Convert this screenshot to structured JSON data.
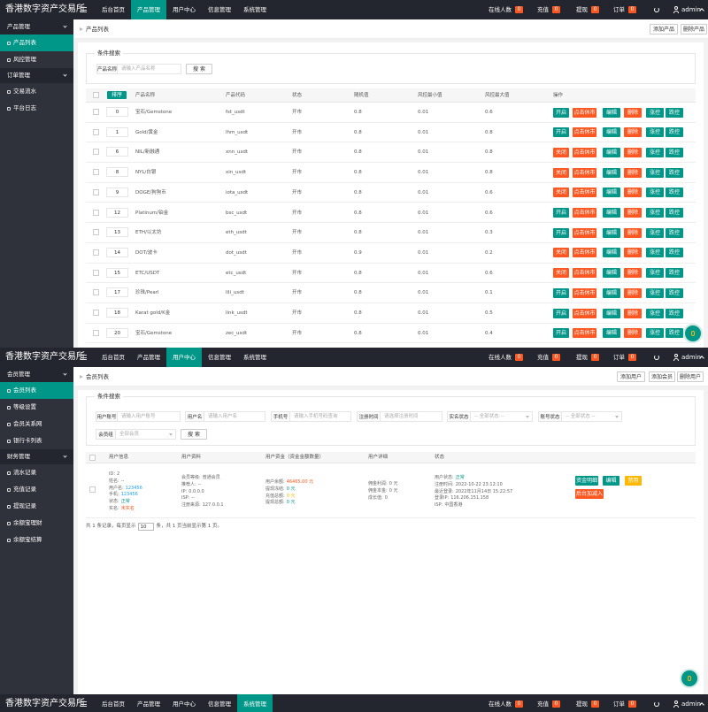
{
  "screens": [
    {
      "header": {
        "logo": "香港数字资产交易所",
        "nav": [
          {
            "label": "后台首页"
          },
          {
            "label": "产品管理",
            "active": true
          },
          {
            "label": "用户中心"
          },
          {
            "label": "信息管理"
          },
          {
            "label": "系统管理"
          }
        ],
        "stats": [
          {
            "label": "在线人数",
            "count": 0
          },
          {
            "label": "充值",
            "count": 0
          },
          {
            "label": "提现",
            "count": 0
          },
          {
            "label": "订单",
            "count": 0
          }
        ],
        "user": "admin"
      },
      "sidebar": [
        {
          "label": "产品管理",
          "group": true
        },
        {
          "label": "产品列表",
          "active": true
        },
        {
          "label": "风控管理"
        },
        {
          "label": "订单管理",
          "group": true
        },
        {
          "label": "交易流水"
        },
        {
          "label": "平台日志"
        }
      ],
      "breadcrumb": "产品列表",
      "toolbar": [
        "添加产品",
        "删除产品"
      ],
      "search": {
        "legend": "条件搜索",
        "fields": [
          {
            "label": "产品名称",
            "placeholder": "请输入产品名称"
          }
        ],
        "button": "搜 索"
      },
      "table": {
        "sort_button": "排序",
        "columns": [
          "产品名称",
          "产品代码",
          "状态",
          "随机值",
          "风控最小值",
          "风控最大值",
          "操作"
        ],
        "action_buttons": [
          {
            "label": "点击休市",
            "color": "#ff5722"
          },
          {
            "label": "编辑",
            "color": "#009688"
          },
          {
            "label": "删除",
            "color": "#ff5722"
          },
          {
            "label": "涨控",
            "color": "#009688"
          },
          {
            "label": "跌控",
            "color": "#009688"
          }
        ],
        "rows": [
          {
            "sort": 0,
            "name": "宝石/Gemstone",
            "code": "fst_usdt",
            "status": "开市",
            "random": 0.8,
            "min": 0.01,
            "max": 0.6,
            "toggle": {
              "label": "开启",
              "color": "#009688"
            }
          },
          {
            "sort": 1,
            "name": "Gold/黄金",
            "code": "lhm_usdt",
            "status": "开市",
            "random": 0.8,
            "min": 0.01,
            "max": 0.8,
            "toggle": {
              "label": "开启",
              "color": "#009688"
            }
          },
          {
            "sort": 6,
            "name": "NIL/新融通",
            "code": "xnn_usdt",
            "status": "开市",
            "random": 0.8,
            "min": 0.01,
            "max": 0.8,
            "toggle": {
              "label": "关闭",
              "color": "#ff5722"
            }
          },
          {
            "sort": 8,
            "name": "NYL/白银",
            "code": "xin_usdt",
            "status": "开市",
            "random": 0.8,
            "min": 0.01,
            "max": 0.8,
            "toggle": {
              "label": "关闭",
              "color": "#ff5722"
            }
          },
          {
            "sort": 9,
            "name": "DOGE/狗狗币",
            "code": "iota_usdt",
            "status": "开市",
            "random": 0.8,
            "min": 0.01,
            "max": 0.6,
            "toggle": {
              "label": "关闭",
              "color": "#ff5722"
            }
          },
          {
            "sort": 12,
            "name": "Platinum/铂金",
            "code": "bsc_usdt",
            "status": "开市",
            "random": 0.8,
            "min": 0.01,
            "max": 0.6,
            "toggle": {
              "label": "开启",
              "color": "#009688"
            }
          },
          {
            "sort": 13,
            "name": "ETH/以太坊",
            "code": "eth_usdt",
            "status": "开市",
            "random": 0.8,
            "min": 0.01,
            "max": 0.3,
            "toggle": {
              "label": "开启",
              "color": "#009688"
            }
          },
          {
            "sort": 14,
            "name": "DOT/波卡",
            "code": "dot_usdt",
            "status": "开市",
            "random": 0.9,
            "min": 0.01,
            "max": 0.2,
            "toggle": {
              "label": "关闭",
              "color": "#ff5722"
            }
          },
          {
            "sort": 15,
            "name": "ETC/USDT",
            "code": "etc_usdt",
            "status": "开市",
            "random": 0.8,
            "min": 0.01,
            "max": 0.6,
            "toggle": {
              "label": "关闭",
              "color": "#ff5722"
            }
          },
          {
            "sort": 17,
            "name": "珍珠/Pearl",
            "code": "lili_usdt",
            "status": "开市",
            "random": 0.8,
            "min": 0.01,
            "max": 0.1,
            "toggle": {
              "label": "开启",
              "color": "#009688"
            }
          },
          {
            "sort": 18,
            "name": "Karat gold/K金",
            "code": "link_usdt",
            "status": "开市",
            "random": 0.8,
            "min": 0.01,
            "max": 0.5,
            "toggle": {
              "label": "开启",
              "color": "#009688"
            }
          },
          {
            "sort": 20,
            "name": "宝石/Gemstone",
            "code": "zec_usdt",
            "status": "开市",
            "random": 0.8,
            "min": 0.01,
            "max": 0.4,
            "toggle": {
              "label": "开启",
              "color": "#009688"
            }
          }
        ]
      }
    },
    {
      "header": {
        "logo": "香港数字资产交易所",
        "nav": [
          {
            "label": "后台首页"
          },
          {
            "label": "产品管理"
          },
          {
            "label": "用户中心",
            "active": true
          },
          {
            "label": "信息管理"
          },
          {
            "label": "系统管理"
          }
        ],
        "stats": [
          {
            "label": "在线人数",
            "count": 0
          },
          {
            "label": "充值",
            "count": 0
          },
          {
            "label": "提现",
            "count": 0
          },
          {
            "label": "订单",
            "count": 0
          }
        ],
        "user": "admin"
      },
      "sidebar": [
        {
          "label": "会员管理",
          "group": true
        },
        {
          "label": "会员列表",
          "active": true
        },
        {
          "label": "等级设置"
        },
        {
          "label": "会员关系网"
        },
        {
          "label": "银行卡列表"
        },
        {
          "label": "财务管理",
          "group": true
        },
        {
          "label": "流水记录"
        },
        {
          "label": "充值记录"
        },
        {
          "label": "提现记录"
        },
        {
          "label": "余额宝理财"
        },
        {
          "label": "余额宝结算"
        }
      ],
      "breadcrumb": "会员列表",
      "toolbar": [
        "添加用户",
        "添加会员",
        "删除用户"
      ],
      "search": {
        "legend": "条件搜索",
        "fields": [
          {
            "label": "用户账号",
            "placeholder": "请输入用户账号"
          },
          {
            "label": "用户名",
            "placeholder": "请输入用户名"
          },
          {
            "label": "手机号",
            "placeholder": "请输入手机号码查询"
          },
          {
            "label": "注册时间",
            "placeholder": "请选择注册时间"
          },
          {
            "label": "实名状态",
            "placeholder": "-- 全部状态 --"
          },
          {
            "label": "账号状态",
            "placeholder": "-- 全部状态 --"
          },
          {
            "label": "会员组",
            "placeholder": "全部会员"
          }
        ],
        "button": "搜 索"
      },
      "table": {
        "columns": [
          "用户信息",
          "用户资料",
          "用户资金（资金金额数量）",
          "用户详细",
          "状态"
        ],
        "row": {
          "info": [
            {
              "label": "ID:",
              "value": 2
            },
            {
              "label": "姓名:",
              "value": "--"
            },
            {
              "label": "用户名:",
              "value": "123456",
              "color": "#1e9fff"
            },
            {
              "label": "手机:",
              "value": "123456",
              "color": "#1e9fff"
            },
            {
              "label": "状态:",
              "value": "正常",
              "color": "#009688"
            },
            {
              "label": "实名:",
              "value": "未实名",
              "color": "#ff5722"
            }
          ],
          "profile": [
            {
              "label": "会员等级:",
              "value": "普通会员"
            },
            {
              "label": "推荐人:",
              "value": "--"
            },
            {
              "label": "IP:",
              "value": "0.0.0.0"
            },
            {
              "label": "ISP:",
              "value": "--"
            },
            {
              "label": "注册来源:",
              "value": "127.0.0.1"
            }
          ],
          "funds": [
            {
              "label": "用户余额:",
              "value": "46465.00 元",
              "color": "#ff5722"
            },
            {
              "label": "提现冻结:",
              "value": "0 元",
              "color": "#009688"
            },
            {
              "label": "充值总额:",
              "value": "0 元",
              "color": "#ffb800"
            },
            {
              "label": "提现总额:",
              "value": "0 元",
              "color": "#009688"
            }
          ],
          "detail": [
            {
              "label": "佣金利润:",
              "value": "0 元"
            },
            {
              "label": "佣金本金:",
              "value": "0 元"
            },
            {
              "label": "成长值:",
              "value": 0
            }
          ],
          "status": [
            {
              "label": "用户状态:",
              "value": "正常",
              "color": "#009688"
            },
            {
              "label": "注册时间:",
              "value": "2022-10-22 23:12:10"
            },
            {
              "label": "最近登录:",
              "value": "2022年11月14日 15:22:57"
            },
            {
              "label": "登录IP:",
              "value": "116.206.151.158"
            },
            {
              "label": "ISP:",
              "value": "中国香港"
            }
          ],
          "buttons": [
            {
              "label": "资金明细",
              "color": "#009688"
            },
            {
              "label": "编辑",
              "color": "#009688"
            },
            {
              "label": "禁用",
              "color": "#ffb800"
            },
            {
              "label": "后台加减入",
              "color": "#ff5722"
            }
          ]
        }
      },
      "pagination": {
        "before": "共 1 条记录，每页显示",
        "page_size": 10,
        "after": "条，共 1 页当前显示第 1 页。"
      }
    },
    {
      "header": {
        "logo": "香港数字资产交易所",
        "nav": [
          {
            "label": "后台首页"
          },
          {
            "label": "产品管理"
          },
          {
            "label": "用户中心"
          },
          {
            "label": "信息管理"
          },
          {
            "label": "系统管理",
            "active": true
          }
        ],
        "stats": [
          {
            "label": "在线人数",
            "count": 0
          },
          {
            "label": "充值",
            "count": 0
          },
          {
            "label": "提现",
            "count": 0
          },
          {
            "label": "订单",
            "count": 0
          }
        ],
        "user": "admin"
      }
    }
  ]
}
